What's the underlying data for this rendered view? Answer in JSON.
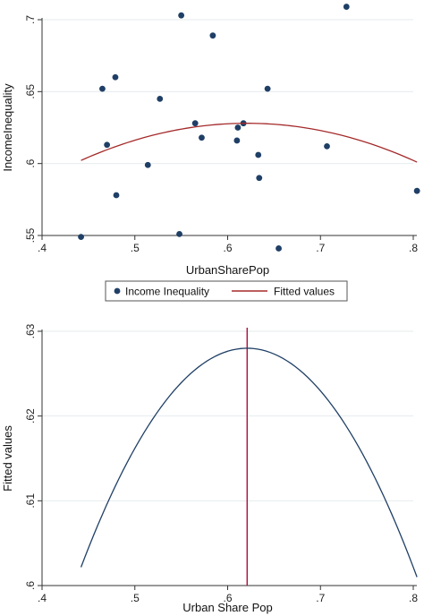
{
  "colors": {
    "scatter": "#1f3f66",
    "fit_top": "#a52a2a",
    "curve_bottom": "#1f3f66",
    "vline": "#b0103a",
    "grid": "#e6ebee"
  },
  "chart_data": [
    {
      "type": "scatter",
      "title": "",
      "xlabel": "UrbanSharePop",
      "ylabel": "IncomeInequality",
      "xlim": [
        0.4,
        0.8
      ],
      "ylim": [
        0.55,
        0.7
      ],
      "xticks": [
        0.4,
        0.5,
        0.6,
        0.7,
        0.8
      ],
      "xtick_labels": [
        ".4",
        ".5",
        ".6",
        ".7",
        ".8"
      ],
      "yticks": [
        0.55,
        0.6,
        0.65,
        0.7
      ],
      "ytick_labels": [
        ".55",
        ".6",
        ".65",
        ".7"
      ],
      "grid": true,
      "legend": {
        "placement": "bottom",
        "entries": [
          "Income Inequality",
          "Fitted values"
        ]
      },
      "series": [
        {
          "name": "Income Inequality",
          "kind": "points",
          "points": [
            [
              0.442,
              0.549
            ],
            [
              0.465,
              0.652
            ],
            [
              0.47,
              0.613
            ],
            [
              0.479,
              0.66
            ],
            [
              0.48,
              0.578
            ],
            [
              0.514,
              0.599
            ],
            [
              0.527,
              0.645
            ],
            [
              0.548,
              0.551
            ],
            [
              0.55,
              0.703
            ],
            [
              0.565,
              0.628
            ],
            [
              0.572,
              0.618
            ],
            [
              0.584,
              0.689
            ],
            [
              0.61,
              0.616
            ],
            [
              0.611,
              0.625
            ],
            [
              0.617,
              0.628
            ],
            [
              0.633,
              0.606
            ],
            [
              0.634,
              0.59
            ],
            [
              0.643,
              0.652
            ],
            [
              0.655,
              0.541
            ],
            [
              0.707,
              0.612
            ],
            [
              0.728,
              0.709
            ],
            [
              0.804,
              0.581
            ]
          ]
        },
        {
          "name": "Fitted values",
          "kind": "quadratic",
          "x_range": [
            0.442,
            0.804
          ],
          "peak_x": 0.621,
          "peak_y": 0.628,
          "end_y": 0.601
        }
      ]
    },
    {
      "type": "line",
      "title": "",
      "xlabel": "Urban Share  Pop",
      "ylabel": "Fitted values",
      "xlim": [
        0.4,
        0.8
      ],
      "ylim": [
        0.6,
        0.63
      ],
      "xticks": [
        0.4,
        0.5,
        0.6,
        0.7,
        0.8
      ],
      "xtick_labels": [
        ".4",
        ".5",
        ".6",
        ".7",
        ".8"
      ],
      "yticks": [
        0.6,
        0.61,
        0.62,
        0.63
      ],
      "ytick_labels": [
        ".6",
        ".61",
        ".62",
        ".63"
      ],
      "grid": true,
      "series": [
        {
          "kind": "quadratic",
          "x_range": [
            0.442,
            0.804
          ],
          "peak_x": 0.621,
          "peak_y": 0.628,
          "end_y": 0.601
        }
      ],
      "vline_x": 0.621
    }
  ]
}
